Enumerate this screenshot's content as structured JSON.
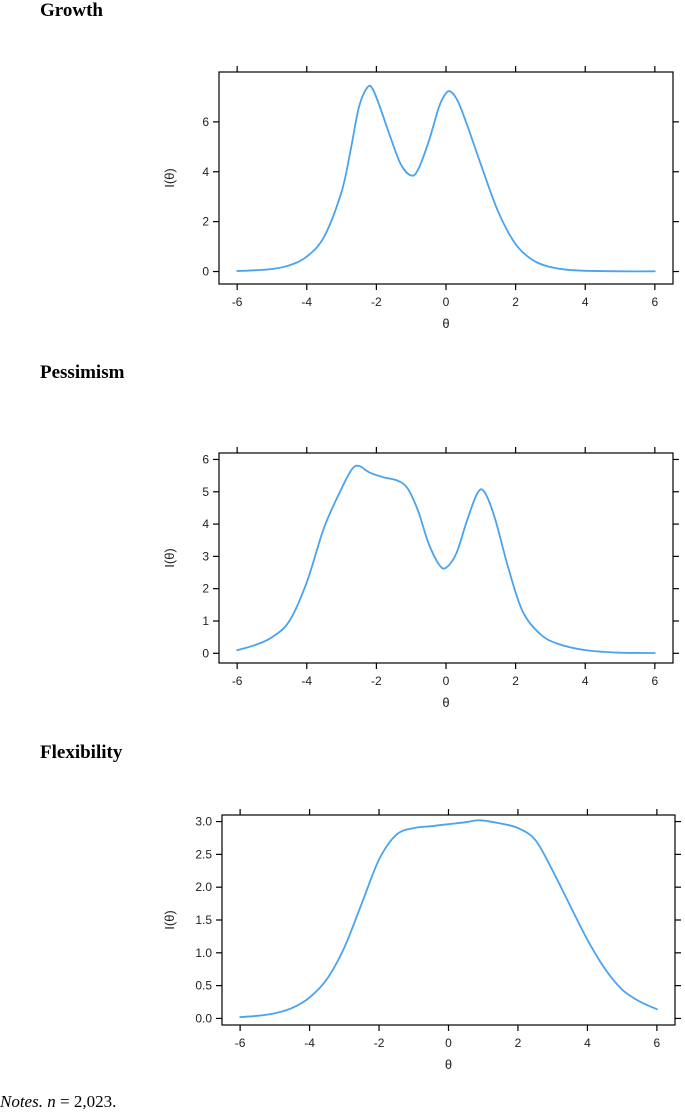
{
  "notes": {
    "prefix": "Notes.",
    "n_symbol": "n",
    "text": " = 2,023."
  },
  "chart_data": [
    {
      "type": "line",
      "title": "Growth",
      "xlabel": "θ",
      "ylabel": "I(θ)",
      "xlim": [
        -6,
        6
      ],
      "ylim": [
        -0.5,
        8
      ],
      "xticks": [
        -6,
        -4,
        -2,
        0,
        2,
        4,
        6
      ],
      "yticks": [
        0,
        2,
        4,
        6
      ],
      "grid": false,
      "series": [
        {
          "color": "#4aa3ef",
          "x": [
            -6,
            -5.5,
            -5,
            -4.5,
            -4,
            -3.5,
            -3,
            -2.75,
            -2.5,
            -2.25,
            -2.1,
            -1.9,
            -1.6,
            -1.3,
            -1.0,
            -0.8,
            -0.5,
            -0.2,
            0.0,
            0.15,
            0.35,
            0.6,
            1.0,
            1.5,
            2.0,
            2.5,
            3.0,
            3.5,
            4.0,
            5.0,
            6.0
          ],
          "y": [
            0.02,
            0.05,
            0.1,
            0.25,
            0.6,
            1.4,
            3.2,
            4.8,
            6.6,
            7.4,
            7.3,
            6.6,
            5.4,
            4.3,
            3.85,
            4.1,
            5.2,
            6.6,
            7.15,
            7.2,
            6.8,
            5.9,
            4.3,
            2.4,
            1.1,
            0.45,
            0.18,
            0.07,
            0.03,
            0.01,
            0.01
          ]
        }
      ]
    },
    {
      "type": "line",
      "title": "Pessimism",
      "xlabel": "θ",
      "ylabel": "I(θ)",
      "xlim": [
        -6,
        6
      ],
      "ylim": [
        -0.3,
        6.2
      ],
      "xticks": [
        -6,
        -4,
        -2,
        0,
        2,
        4,
        6
      ],
      "yticks": [
        0,
        1,
        2,
        3,
        4,
        5,
        6
      ],
      "grid": false,
      "series": [
        {
          "color": "#4aa3ef",
          "x": [
            -6,
            -5.5,
            -5,
            -4.5,
            -4,
            -3.5,
            -3,
            -2.7,
            -2.5,
            -2.2,
            -1.8,
            -1.4,
            -1.1,
            -0.8,
            -0.5,
            -0.2,
            0.0,
            0.3,
            0.6,
            0.9,
            1.1,
            1.4,
            1.8,
            2.2,
            2.7,
            3.2,
            4.0,
            5.0,
            6.0
          ],
          "y": [
            0.1,
            0.25,
            0.5,
            1.0,
            2.2,
            3.9,
            5.1,
            5.7,
            5.8,
            5.6,
            5.45,
            5.35,
            5.1,
            4.4,
            3.4,
            2.75,
            2.65,
            3.1,
            4.1,
            4.95,
            5.0,
            4.2,
            2.6,
            1.3,
            0.6,
            0.3,
            0.1,
            0.02,
            0.01
          ]
        }
      ]
    },
    {
      "type": "line",
      "title": "Flexibility",
      "xlabel": "θ",
      "ylabel": "I(θ)",
      "xlim": [
        -6,
        6
      ],
      "ylim": [
        -0.1,
        3.1
      ],
      "xticks": [
        -6,
        -4,
        -2,
        0,
        2,
        4,
        6
      ],
      "yticks": [
        0.0,
        0.5,
        1.0,
        1.5,
        2.0,
        2.5,
        3.0
      ],
      "ytick_labels": [
        "0.0",
        "0.5",
        "1.0",
        "1.5",
        "2.0",
        "2.5",
        "3.0"
      ],
      "grid": false,
      "series": [
        {
          "color": "#4aa3ef",
          "x": [
            -6,
            -5.5,
            -5,
            -4.5,
            -4,
            -3.5,
            -3,
            -2.5,
            -2,
            -1.5,
            -1,
            -0.5,
            0,
            0.5,
            0.9,
            1.5,
            2,
            2.5,
            3,
            3.5,
            4,
            4.5,
            5,
            5.5,
            6
          ],
          "y": [
            0.02,
            0.04,
            0.08,
            0.16,
            0.32,
            0.6,
            1.08,
            1.75,
            2.42,
            2.8,
            2.9,
            2.93,
            2.96,
            2.99,
            3.02,
            2.97,
            2.9,
            2.72,
            2.25,
            1.72,
            1.2,
            0.76,
            0.44,
            0.26,
            0.14
          ]
        }
      ]
    }
  ]
}
